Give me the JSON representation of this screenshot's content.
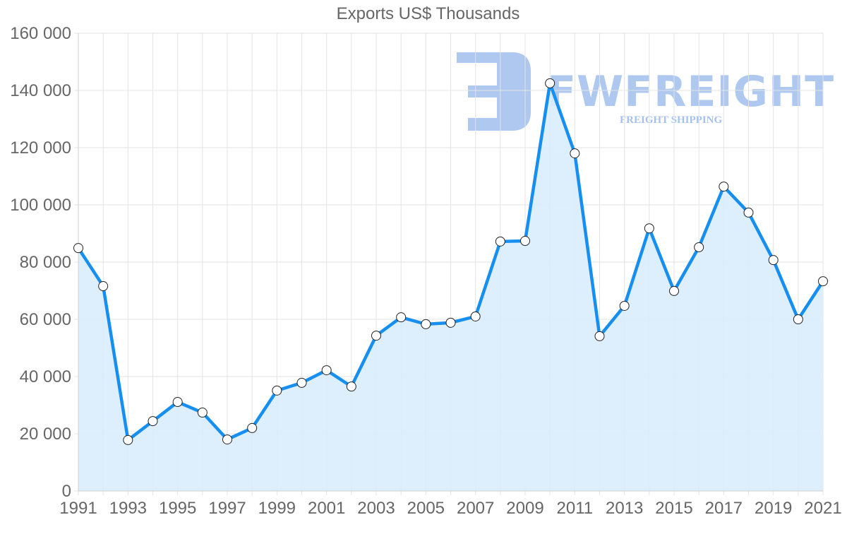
{
  "chart_data": {
    "type": "line",
    "title": "Exports US$ Thousands",
    "xlabel": "",
    "ylabel": "",
    "ylim": [
      0,
      160000
    ],
    "yticks": [
      "0",
      "20 000",
      "40 000",
      "60 000",
      "80 000",
      "100 000",
      "120 000",
      "140 000",
      "160 000"
    ],
    "xticks": [
      "1991",
      "1993",
      "1995",
      "1997",
      "1999",
      "2001",
      "2003",
      "2005",
      "2007",
      "2009",
      "2011",
      "2013",
      "2015",
      "2017",
      "2019",
      "2021"
    ],
    "grid": true,
    "legend": "none",
    "fill": true,
    "x": [
      1991,
      1992,
      1993,
      1994,
      1995,
      1996,
      1997,
      1998,
      1999,
      2000,
      2001,
      2002,
      2003,
      2004,
      2005,
      2006,
      2007,
      2008,
      2009,
      2010,
      2011,
      2012,
      2013,
      2014,
      2015,
      2016,
      2017,
      2018,
      2019,
      2020,
      2021
    ],
    "series": [
      {
        "name": "Exports",
        "values": [
          84900,
          71600,
          17800,
          24400,
          31100,
          27400,
          18000,
          22000,
          35100,
          37800,
          42200,
          36500,
          54300,
          60700,
          58300,
          58800,
          61000,
          87200,
          87400,
          142500,
          118000,
          54100,
          64700,
          91800,
          69900,
          85200,
          106400,
          97300,
          80700,
          60000,
          73300
        ]
      }
    ],
    "colors": {
      "line": "#168ff0",
      "fill": "#d9ecfc",
      "grid": "#e3e3e3",
      "point_fill": "#ffffff",
      "point_stroke": "#222222"
    }
  },
  "watermark": {
    "brand": "FWFREIGHT",
    "tagline": "FREIGHT SHIPPING"
  }
}
